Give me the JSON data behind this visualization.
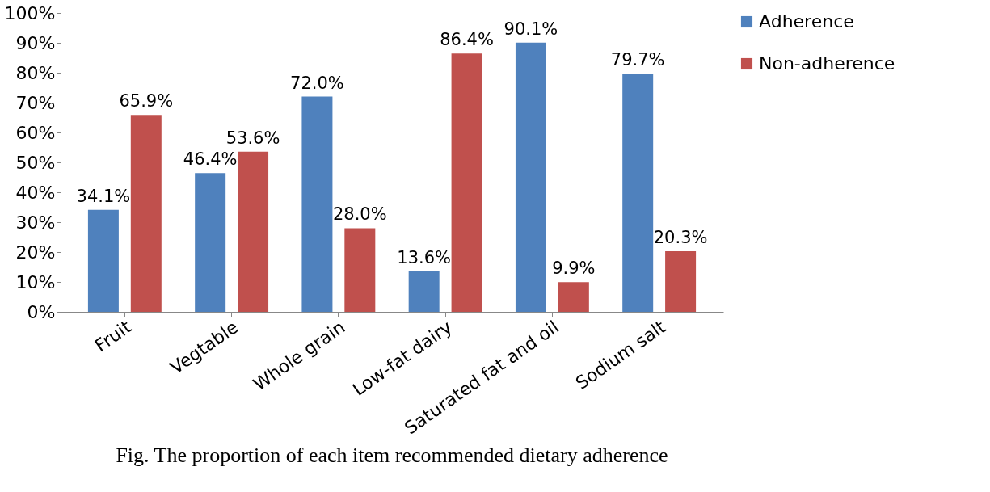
{
  "chart_data": {
    "type": "bar",
    "categories": [
      "Fruit",
      "Vegtable",
      "Whole grain",
      "Low-fat dairy",
      "Saturated fat and oil",
      "Sodium salt"
    ],
    "series": [
      {
        "name": "Adherence",
        "color": "#4f81bd",
        "values": [
          34.1,
          46.4,
          72.0,
          13.6,
          90.1,
          79.7
        ],
        "value_labels": [
          "34.1%",
          "46.4%",
          "72.0%",
          "13.6%",
          "90.1%",
          "79.7%"
        ]
      },
      {
        "name": "Non-adherence",
        "color": "#c0504d",
        "values": [
          65.9,
          53.6,
          28.0,
          86.4,
          9.9,
          20.3
        ],
        "value_labels": [
          "65.9%",
          "53.6%",
          "28.0%",
          "86.4%",
          "9.9%",
          "20.3%"
        ]
      }
    ],
    "ylim": [
      0,
      100
    ],
    "yticks": [
      {
        "value": 0,
        "label": "0%"
      },
      {
        "value": 10,
        "label": "10%"
      },
      {
        "value": 20,
        "label": "20%"
      },
      {
        "value": 30,
        "label": "30%"
      },
      {
        "value": 40,
        "label": "40%"
      },
      {
        "value": 50,
        "label": "50%"
      },
      {
        "value": 60,
        "label": "60%"
      },
      {
        "value": 70,
        "label": "70%"
      },
      {
        "value": 80,
        "label": "80%"
      },
      {
        "value": 90,
        "label": "90%"
      },
      {
        "value": 100,
        "label": "100%"
      }
    ],
    "grid": false,
    "legend": "right",
    "annotations": [
      "Fig. The proportion of  each item recommended dietary adherence"
    ]
  }
}
